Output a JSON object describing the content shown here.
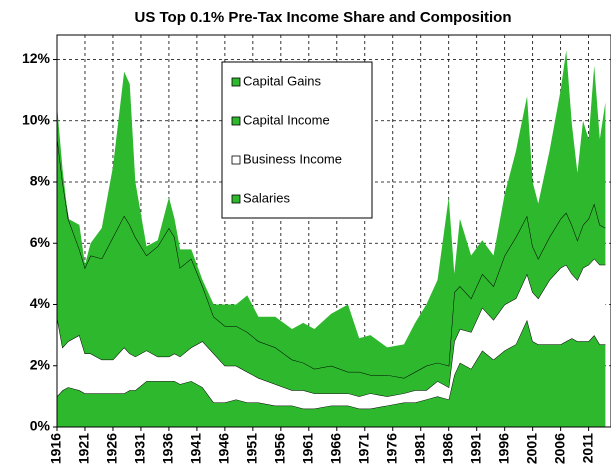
{
  "chart_data": {
    "type": "stacked-area",
    "title": "US Top 0.1% Pre-Tax Income Share and Composition",
    "x": [
      1916,
      1917,
      1918,
      1920,
      1921,
      1922,
      1924,
      1926,
      1928,
      1929,
      1930,
      1932,
      1934,
      1936,
      1937,
      1938,
      1940,
      1942,
      1944,
      1946,
      1948,
      1950,
      1952,
      1955,
      1958,
      1960,
      1962,
      1965,
      1968,
      1970,
      1972,
      1975,
      1978,
      1980,
      1982,
      1984,
      1986,
      1987,
      1988,
      1990,
      1992,
      1994,
      1996,
      1998,
      2000,
      2001,
      2002,
      2004,
      2006,
      2007,
      2008,
      2009,
      2010,
      2011,
      2012,
      2013,
      2014
    ],
    "series": [
      {
        "name": "Salaries",
        "color": "#2eb82e",
        "values": [
          1.0,
          1.2,
          1.3,
          1.2,
          1.1,
          1.1,
          1.1,
          1.1,
          1.1,
          1.2,
          1.2,
          1.5,
          1.5,
          1.5,
          1.5,
          1.4,
          1.5,
          1.3,
          0.8,
          0.8,
          0.9,
          0.8,
          0.8,
          0.7,
          0.7,
          0.6,
          0.6,
          0.7,
          0.7,
          0.6,
          0.6,
          0.7,
          0.8,
          0.8,
          0.9,
          1.0,
          0.9,
          1.7,
          2.1,
          1.9,
          2.5,
          2.2,
          2.5,
          2.7,
          3.5,
          2.8,
          2.7,
          2.7,
          2.7,
          2.8,
          2.9,
          2.8,
          2.8,
          2.8,
          3.0,
          2.7,
          2.7
        ]
      },
      {
        "name": "Business Income",
        "color": "#ffffff",
        "values": [
          2.6,
          1.4,
          1.5,
          1.8,
          1.3,
          1.3,
          1.1,
          1.1,
          1.5,
          1.2,
          1.1,
          1.0,
          0.8,
          0.8,
          0.9,
          0.9,
          1.1,
          1.5,
          1.6,
          1.2,
          1.1,
          1.0,
          0.8,
          0.7,
          0.5,
          0.6,
          0.5,
          0.4,
          0.4,
          0.4,
          0.5,
          0.3,
          0.3,
          0.4,
          0.3,
          0.5,
          0.4,
          1.1,
          1.1,
          1.2,
          1.4,
          1.3,
          1.5,
          1.5,
          1.5,
          1.6,
          1.5,
          2.1,
          2.5,
          2.5,
          2.1,
          2.0,
          2.4,
          2.5,
          2.5,
          2.6,
          2.6
        ]
      },
      {
        "name": "Capital Income",
        "color": "#2eb82e",
        "values": [
          5.9,
          5.4,
          4.0,
          2.8,
          2.8,
          3.2,
          3.3,
          4.0,
          4.3,
          4.2,
          3.9,
          3.1,
          3.6,
          4.2,
          3.8,
          2.9,
          2.9,
          1.8,
          1.2,
          1.3,
          1.3,
          1.3,
          1.2,
          1.2,
          1.0,
          0.9,
          0.8,
          0.9,
          0.7,
          0.8,
          0.6,
          0.7,
          0.5,
          0.6,
          0.8,
          0.6,
          0.7,
          1.6,
          1.4,
          1.1,
          1.1,
          1.1,
          1.6,
          2.0,
          1.9,
          1.5,
          1.3,
          1.4,
          1.6,
          1.7,
          1.6,
          1.3,
          1.4,
          1.5,
          1.8,
          1.3,
          1.2
        ]
      },
      {
        "name": "Capital Gains",
        "color": "#2eb82e",
        "values": [
          1.0,
          0.4,
          0.0,
          0.8,
          0.1,
          0.4,
          1.0,
          2.3,
          4.7,
          4.6,
          1.8,
          0.3,
          0.2,
          1.0,
          0.6,
          0.6,
          0.3,
          0.2,
          0.4,
          0.7,
          0.7,
          1.2,
          0.8,
          1.0,
          1.0,
          1.3,
          1.3,
          1.7,
          2.2,
          1.1,
          1.3,
          0.9,
          1.1,
          1.6,
          2.0,
          2.7,
          5.5,
          0.6,
          2.2,
          1.4,
          1.1,
          1.0,
          2.0,
          2.8,
          3.9,
          2.1,
          1.8,
          2.8,
          4.2,
          5.3,
          3.3,
          2.2,
          3.4,
          2.6,
          4.5,
          2.8,
          4.1
        ]
      }
    ],
    "xlim": [
      1916,
      2015
    ],
    "xticks": [
      1916,
      1921,
      1926,
      1931,
      1936,
      1941,
      1946,
      1951,
      1956,
      1961,
      1966,
      1971,
      1976,
      1981,
      1986,
      1991,
      1996,
      2001,
      2006,
      2011
    ],
    "ylim": [
      0,
      12.8
    ],
    "yticks": [
      {
        "value": 0,
        "label": "0%"
      },
      {
        "value": 2,
        "label": "2%"
      },
      {
        "value": 4,
        "label": "4%"
      },
      {
        "value": 6,
        "label": "6%"
      },
      {
        "value": 8,
        "label": "8%"
      },
      {
        "value": 10,
        "label": "10%"
      },
      {
        "value": 12,
        "label": "12%"
      }
    ],
    "grid": true,
    "legend": "top"
  }
}
